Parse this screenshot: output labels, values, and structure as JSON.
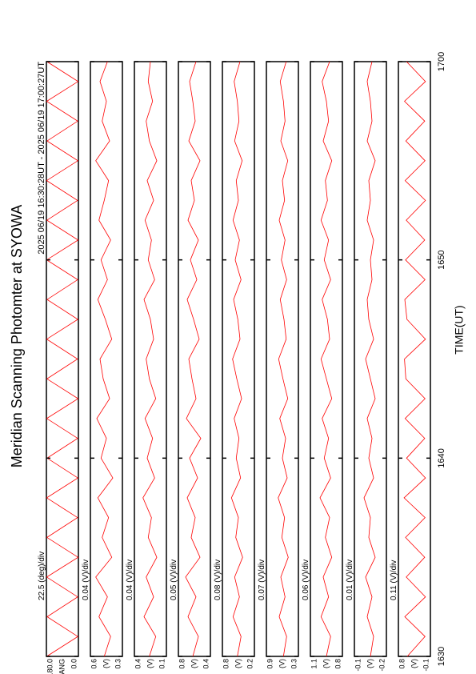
{
  "chart_data": {
    "type": "line",
    "title": "Meridian Scanning Photomter at SYOWA",
    "subtitle": "2025 06/19 16:30:28UT - 2025 06/19 17:00:27UT",
    "xlabel": "TIME(UT)",
    "xlim": [
      0,
      30
    ],
    "xticks": [
      {
        "value": 0,
        "label": "1630"
      },
      {
        "value": 10,
        "label": "1640"
      },
      {
        "value": 20,
        "label": "1650"
      },
      {
        "value": 30,
        "label": "1700"
      }
    ],
    "x": [
      0,
      1,
      2,
      3,
      4,
      5,
      6,
      7,
      8,
      9,
      10,
      11,
      12,
      13,
      14,
      15,
      16,
      17,
      18,
      19,
      20,
      21,
      22,
      23,
      24,
      25,
      26,
      27,
      28,
      29,
      30
    ],
    "color": "#ff0000",
    "panels": [
      {
        "scale": "22.5 (deg)/div",
        "unit": "ANG",
        "ylim": [
          0,
          180
        ],
        "yticks": [
          {
            "value": 180,
            "label": "180.0"
          },
          {
            "value": 0,
            "label": "0.0"
          }
        ],
        "values": [
          178,
          3,
          176,
          4,
          178,
          2,
          177,
          5,
          178,
          3,
          176,
          4,
          178,
          2,
          177,
          5,
          178,
          3,
          176,
          4,
          178,
          2,
          177,
          5,
          178,
          3,
          176,
          4,
          178,
          2,
          177
        ]
      },
      {
        "scale": "0.04 (V)/div",
        "unit": "(V)",
        "ylim": [
          0.3,
          0.6
        ],
        "yticks": [
          {
            "value": 0.6,
            "label": "0.6"
          },
          {
            "value": 0.3,
            "label": "0.3"
          }
        ],
        "values": [
          0.47,
          0.41,
          0.52,
          0.44,
          0.55,
          0.4,
          0.49,
          0.43,
          0.53,
          0.39,
          0.5,
          0.45,
          0.54,
          0.42,
          0.48,
          0.51,
          0.4,
          0.46,
          0.53,
          0.44,
          0.5,
          0.41,
          0.52,
          0.47,
          0.43,
          0.55,
          0.42,
          0.49,
          0.45,
          0.51,
          0.44
        ]
      },
      {
        "scale": "0.04 (V)/div",
        "unit": "(V)",
        "ylim": [
          0.1,
          0.4
        ],
        "yticks": [
          {
            "value": 0.4,
            "label": "0.4"
          },
          {
            "value": 0.1,
            "label": "0.1"
          }
        ],
        "values": [
          0.26,
          0.2,
          0.31,
          0.22,
          0.29,
          0.19,
          0.27,
          0.24,
          0.32,
          0.21,
          0.28,
          0.23,
          0.3,
          0.2,
          0.26,
          0.29,
          0.22,
          0.25,
          0.31,
          0.21,
          0.27,
          0.24,
          0.3,
          0.22,
          0.28,
          0.19,
          0.26,
          0.29,
          0.23,
          0.27,
          0.25
        ]
      },
      {
        "scale": "0.05 (V)/div",
        "unit": "(V)",
        "ylim": [
          0.4,
          0.8
        ],
        "yticks": [
          {
            "value": 0.8,
            "label": "0.8"
          },
          {
            "value": 0.4,
            "label": "0.4"
          }
        ],
        "values": [
          0.62,
          0.55,
          0.68,
          0.58,
          0.71,
          0.53,
          0.64,
          0.59,
          0.69,
          0.56,
          0.66,
          0.52,
          0.7,
          0.58,
          0.63,
          0.67,
          0.54,
          0.61,
          0.69,
          0.57,
          0.65,
          0.55,
          0.68,
          0.6,
          0.64,
          0.53,
          0.67,
          0.59,
          0.62,
          0.66,
          0.58
        ]
      },
      {
        "scale": "0.08 (V)/div",
        "unit": "(V)",
        "ylim": [
          0.2,
          0.8
        ],
        "yticks": [
          {
            "value": 0.8,
            "label": "0.8"
          },
          {
            "value": 0.2,
            "label": "0.2"
          }
        ],
        "values": [
          0.52,
          0.45,
          0.6,
          0.48,
          0.57,
          0.42,
          0.55,
          0.5,
          0.63,
          0.46,
          0.54,
          0.49,
          0.58,
          0.44,
          0.53,
          0.61,
          0.47,
          0.51,
          0.59,
          0.45,
          0.56,
          0.48,
          0.6,
          0.5,
          0.54,
          0.43,
          0.57,
          0.49,
          0.52,
          0.58,
          0.47
        ]
      },
      {
        "scale": "0.07 (V)/div",
        "unit": "(V)",
        "ylim": [
          0.3,
          0.9
        ],
        "yticks": [
          {
            "value": 0.9,
            "label": "0.9"
          },
          {
            "value": 0.3,
            "label": "0.3"
          }
        ],
        "values": [
          0.58,
          0.52,
          0.66,
          0.55,
          0.63,
          0.49,
          0.61,
          0.56,
          0.68,
          0.51,
          0.6,
          0.54,
          0.65,
          0.5,
          0.59,
          0.67,
          0.53,
          0.57,
          0.64,
          0.52,
          0.62,
          0.55,
          0.66,
          0.56,
          0.6,
          0.5,
          0.63,
          0.55,
          0.58,
          0.64,
          0.53
        ]
      },
      {
        "scale": "0.06 (V)/div",
        "unit": "(V)",
        "ylim": [
          0.8,
          1.1
        ],
        "yticks": [
          {
            "value": 1.1,
            "label": "1.1"
          },
          {
            "value": 0.8,
            "label": "0.8"
          }
        ],
        "values": [
          0.95,
          0.91,
          1.0,
          0.93,
          0.98,
          0.9,
          0.96,
          0.92,
          1.01,
          0.91,
          0.97,
          0.93,
          0.99,
          0.9,
          0.95,
          1.0,
          0.92,
          0.94,
          0.99,
          0.91,
          0.97,
          0.93,
          1.0,
          0.94,
          0.96,
          0.9,
          0.98,
          0.93,
          0.95,
          0.99,
          0.92
        ]
      },
      {
        "scale": "0.01 (V)/div",
        "unit": "(V)",
        "ylim": [
          -0.2,
          -0.1
        ],
        "yticks": [
          {
            "value": -0.1,
            "label": "-0.1"
          },
          {
            "value": -0.2,
            "label": "-0.2"
          }
        ],
        "values": [
          -0.15,
          -0.16,
          -0.14,
          -0.155,
          -0.135,
          -0.165,
          -0.145,
          -0.15,
          -0.13,
          -0.16,
          -0.145,
          -0.155,
          -0.14,
          -0.165,
          -0.15,
          -0.135,
          -0.16,
          -0.145,
          -0.14,
          -0.155,
          -0.15,
          -0.16,
          -0.14,
          -0.15,
          -0.145,
          -0.165,
          -0.14,
          -0.155,
          -0.15,
          -0.14,
          -0.155
        ]
      },
      {
        "scale": "0.11 (V)/div",
        "unit": "(V)",
        "ylim": [
          -0.1,
          0.8
        ],
        "yticks": [
          {
            "value": 0.8,
            "label": "0.8"
          },
          {
            "value": -0.1,
            "label": "-0.1"
          }
        ],
        "values": [
          0.55,
          0.05,
          0.62,
          0.04,
          0.58,
          0.06,
          0.6,
          0.05,
          0.64,
          0.04,
          0.57,
          0.06,
          0.61,
          0.05,
          0.59,
          0.63,
          0.04,
          0.56,
          0.62,
          0.05,
          0.6,
          0.06,
          0.58,
          0.04,
          0.61,
          0.05,
          0.59,
          0.06,
          0.63,
          0.04,
          0.57
        ]
      }
    ]
  }
}
